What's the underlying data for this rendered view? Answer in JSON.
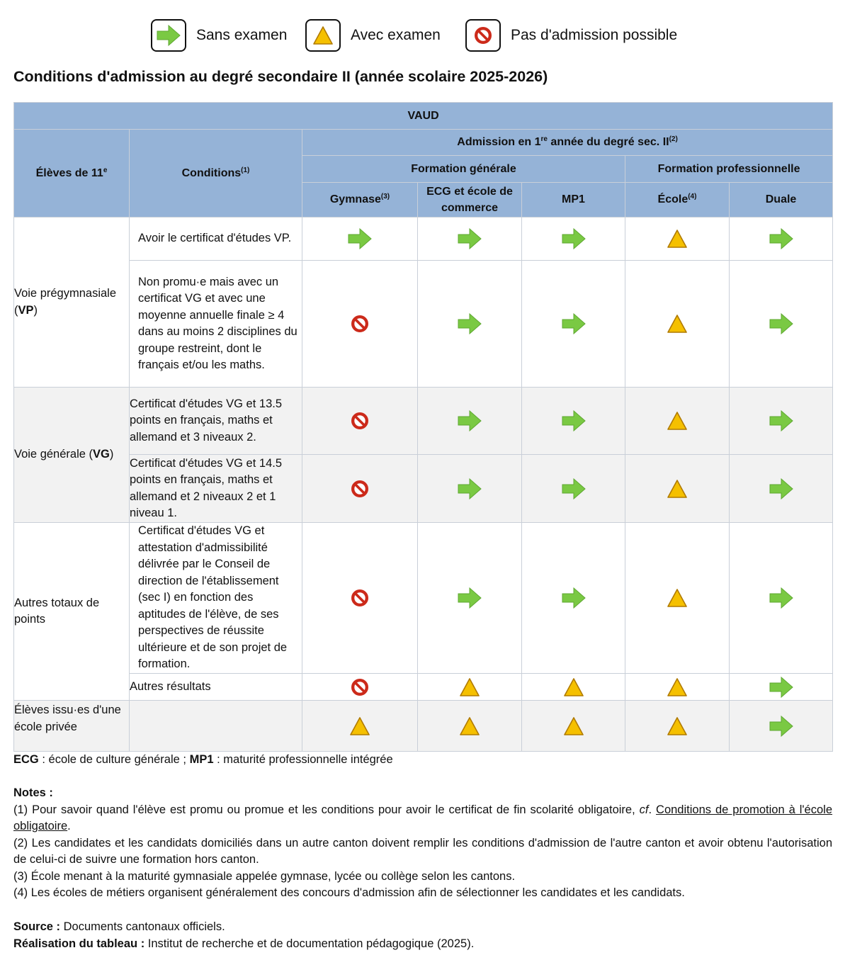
{
  "legend": {
    "sans": "Sans examen",
    "avec": "Avec examen",
    "pas": "Pas d'admission possible"
  },
  "title": "Conditions d'admission au degré secondaire II (année scolaire 2025-2026)",
  "header": {
    "canton": "VAUD",
    "eleves": "Élèves de 11",
    "eleves_sup": "e",
    "conditions": "Conditions",
    "conditions_sup": "(1)",
    "admission_pre": "Admission en 1",
    "admission_sup1": "re",
    "admission_post": " année du degré sec. II",
    "admission_sup2": "(2)",
    "formation_generale": "Formation générale",
    "formation_pro": "Formation professionnelle",
    "gymnase": "Gymnase",
    "gymnase_sup": "(3)",
    "ecg": "ECG et école de commerce",
    "mp1": "MP1",
    "ecole": "École",
    "ecole_sup": "(4)",
    "duale": "Duale"
  },
  "rows": [
    {
      "student_plain": "Voie prégymnasiale (",
      "student_bold": "VP",
      "student_close": ")",
      "condition": "Avoir le certificat d'études VP.",
      "symbols": [
        "arrow",
        "arrow",
        "arrow",
        "triangle",
        "arrow"
      ]
    },
    {
      "condition": "Non promu·e mais avec un certificat VG et avec une moyenne annuelle finale ≥ 4 dans au moins 2 disciplines du groupe restreint, dont le français et/ou les maths.",
      "symbols": [
        "noentry",
        "arrow",
        "arrow",
        "triangle",
        "arrow"
      ]
    },
    {
      "student_plain": "Voie générale (",
      "student_bold": "VG",
      "student_close": ")",
      "condition": "Certificat d'études VG et 13.5 points en français, maths et allemand et 3 niveaux 2.",
      "symbols": [
        "noentry",
        "arrow",
        "arrow",
        "triangle",
        "arrow"
      ]
    },
    {
      "condition": "Certificat d'études VG et 14.5 points en français, maths et allemand et 2 niveaux 2 et 1 niveau 1.",
      "symbols": [
        "noentry",
        "arrow",
        "arrow",
        "triangle",
        "arrow"
      ]
    },
    {
      "student_plain": "Autres totaux de points",
      "condition": "Certificat d'études VG et attestation d'admissibilité délivrée par le Conseil de direction de l'établissement (sec I) en fonction des aptitudes de l'élève, de ses perspectives de réussite ultérieure et de son projet de formation.",
      "symbols": [
        "noentry",
        "arrow",
        "arrow",
        "triangle",
        "arrow"
      ]
    },
    {
      "condition": "Autres résultats",
      "symbols": [
        "noentry",
        "triangle",
        "triangle",
        "triangle",
        "arrow"
      ]
    },
    {
      "student_plain": "Élèves issu·es d'une école privée",
      "condition": "",
      "symbols": [
        "triangle",
        "triangle",
        "triangle",
        "triangle",
        "arrow"
      ]
    }
  ],
  "footer": {
    "abbr_ecg": "ECG",
    "abbr_ecg_text": " : école de culture générale ; ",
    "abbr_mp1": "MP1",
    "abbr_mp1_text": " : maturité professionnelle intégrée",
    "notes_title": "Notes :",
    "note1_pre": "(1) Pour savoir quand l'élève est promu ou promue et les conditions pour avoir le certificat de fin scolarité obligatoire, ",
    "note1_cf": "cf",
    "note1_dot": ". ",
    "note1_link": "Conditions de promotion à l'école obligatoire",
    "note1_end": ".",
    "note2": "(2) Les candidates et les candidats domiciliés dans un autre canton doivent remplir les conditions d'admission de l'autre canton et avoir obtenu l'autorisation de celui-ci de suivre une formation hors canton.",
    "note3": "(3) École menant à la maturité gymnasiale appelée gymnase, lycée ou collège selon les cantons.",
    "note4": "(4) Les écoles de métiers organisent généralement des concours d'admission afin de sélectionner les candidates et les candidats.",
    "source_label": "Source :",
    "source_text": " Documents cantonaux officiels.",
    "real_label": "Réalisation du tableau :",
    "real_text": " Institut de recherche et de documentation pédagogique (2025)."
  },
  "colors": {
    "header_bg": "#95b3d7",
    "arrow": "#7ac943",
    "triangle": "#f5c000",
    "noentry": "#cc2a1a",
    "row_alt": "#f2f2f2"
  }
}
